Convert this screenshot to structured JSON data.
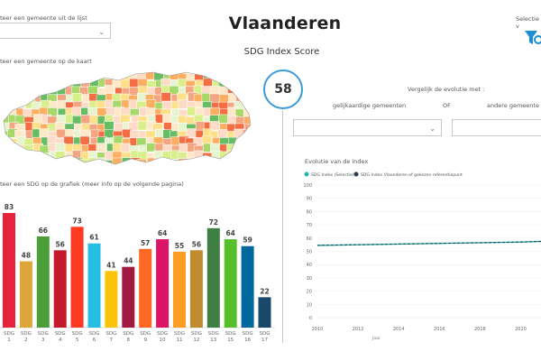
{
  "header": {
    "title": "Vlaanderen",
    "subtitle": "SDG Index Score",
    "selection_label": "Selectie v"
  },
  "left": {
    "select_municipality_label": "teer een gemeente uit de lijst",
    "map_label": "teer een gemeente op de kaart",
    "sdg_chart_label": "teer een SDG op de grafiek (meer info op de volgende pagina)"
  },
  "score": {
    "value": "58"
  },
  "compare": {
    "label": "Vergelijk de evolutie met :",
    "similar_label": "gelijkaardige gemeenten",
    "or_label": "OF",
    "other_label": "andere gemeente"
  },
  "evolution": {
    "label": "Evolutie van de index"
  },
  "colors": {
    "accent": "#3a9bd5",
    "line_selection": "#1fb5b0",
    "line_flanders": "#2b3a4a"
  },
  "chart_data": [
    {
      "type": "bar",
      "title": "teer een SDG op de grafiek (meer info op de volgende pagina)",
      "categories": [
        "SDG 1",
        "SDG 2",
        "SDG 3",
        "SDG 4",
        "SDG 5",
        "SDG 6",
        "SDG 7",
        "SDG 8",
        "SDG 9",
        "SDG 10",
        "SDG 11",
        "SDG 12",
        "SDG 13",
        "SDG 15",
        "SDG 16",
        "SDG 17"
      ],
      "category_lines": [
        [
          "SDG",
          "1"
        ],
        [
          "SDG",
          "2"
        ],
        [
          "SDG",
          "3"
        ],
        [
          "SDG",
          "4"
        ],
        [
          "SDG",
          "5"
        ],
        [
          "SDG",
          "6"
        ],
        [
          "SDG",
          "7"
        ],
        [
          "SDG",
          "8"
        ],
        [
          "SDG",
          "9"
        ],
        [
          "SDG",
          "10"
        ],
        [
          "SDG",
          "11"
        ],
        [
          "SDG",
          "12"
        ],
        [
          "SDG",
          "13"
        ],
        [
          "SDG",
          "15"
        ],
        [
          "SDG",
          "16"
        ],
        [
          "SDG",
          "17"
        ]
      ],
      "values": [
        83,
        48,
        66,
        56,
        73,
        61,
        41,
        44,
        57,
        64,
        55,
        56,
        72,
        64,
        59,
        22
      ],
      "colors": [
        "#e5243b",
        "#dda63a",
        "#4c9f38",
        "#c5192d",
        "#ff3a21",
        "#26bde2",
        "#fcc30b",
        "#a21942",
        "#fd6925",
        "#dd1367",
        "#fd9d24",
        "#bf8b2e",
        "#3f7e44",
        "#56c02b",
        "#00689d",
        "#19486a"
      ],
      "ylim": [
        0,
        100
      ]
    },
    {
      "type": "line",
      "title": "Evolutie van de index",
      "xlabel": "Jaar",
      "ylabel": "",
      "xlim": [
        2010,
        2021
      ],
      "ylim": [
        0,
        100
      ],
      "x_ticks": [
        "2010",
        "2012",
        "2014",
        "2016",
        "2018",
        "2020"
      ],
      "y_ticks": [
        "0",
        "10",
        "20",
        "30",
        "40",
        "50",
        "60",
        "70",
        "80",
        "90",
        "100"
      ],
      "x": [
        2010,
        2012,
        2014,
        2016,
        2018,
        2020,
        2021
      ],
      "series": [
        {
          "name": "SDG Index (Selectie)",
          "values": [
            54.5,
            55,
            55.5,
            56,
            56.5,
            57,
            57.5
          ]
        },
        {
          "name": "SDG Index Vlaanderen of gekozen referentiepunt",
          "values": [
            54.5,
            55,
            55.5,
            56,
            56.5,
            57,
            57.5
          ]
        }
      ]
    }
  ]
}
